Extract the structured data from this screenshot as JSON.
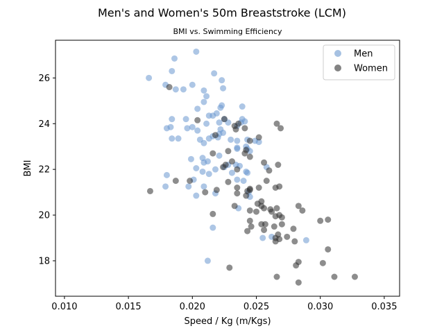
{
  "chart_data": {
    "type": "scatter",
    "title": "Men's and Women's 50m Breaststroke (LCM)",
    "subtitle": "BMI vs. Swimming Efficiency",
    "xlabel": "Speed / Kg (m/Kgs)",
    "ylabel": "BMI",
    "xlim": [
      0.0093,
      0.0362
    ],
    "ylim": [
      16.45,
      27.65
    ],
    "xticks": [
      "0.010",
      "0.015",
      "0.020",
      "0.025",
      "0.030",
      "0.035"
    ],
    "yticks": [
      "18",
      "20",
      "22",
      "24",
      "26"
    ],
    "xtick_values": [
      0.01,
      0.015,
      0.02,
      0.025,
      0.03,
      0.035
    ],
    "ytick_values": [
      18,
      20,
      22,
      24,
      26
    ],
    "grid": false,
    "legend_position": "top-right",
    "series": [
      {
        "name": "Men",
        "color": "#6a97cf",
        "points": [
          [
            0.0166,
            26.0
          ],
          [
            0.0186,
            26.85
          ],
          [
            0.0203,
            27.15
          ],
          [
            0.0184,
            26.3
          ],
          [
            0.0179,
            25.7
          ],
          [
            0.0187,
            25.5
          ],
          [
            0.0193,
            25.5
          ],
          [
            0.02,
            25.7
          ],
          [
            0.0209,
            25.45
          ],
          [
            0.0211,
            25.2
          ],
          [
            0.0217,
            26.2
          ],
          [
            0.0223,
            25.9
          ],
          [
            0.0224,
            25.55
          ],
          [
            0.0209,
            24.95
          ],
          [
            0.0204,
            24.65
          ],
          [
            0.0213,
            24.35
          ],
          [
            0.0219,
            24.45
          ],
          [
            0.0222,
            24.7
          ],
          [
            0.0223,
            24.8
          ],
          [
            0.0239,
            24.75
          ],
          [
            0.0184,
            24.2
          ],
          [
            0.0195,
            24.2
          ],
          [
            0.018,
            23.8
          ],
          [
            0.0183,
            23.85
          ],
          [
            0.0196,
            23.8
          ],
          [
            0.02,
            23.85
          ],
          [
            0.0204,
            23.7
          ],
          [
            0.0211,
            24.0
          ],
          [
            0.0216,
            24.35
          ],
          [
            0.0221,
            24.05
          ],
          [
            0.0225,
            24.2
          ],
          [
            0.0228,
            24.05
          ],
          [
            0.0222,
            23.75
          ],
          [
            0.0221,
            23.55
          ],
          [
            0.0224,
            23.6
          ],
          [
            0.022,
            23.4
          ],
          [
            0.0216,
            23.45
          ],
          [
            0.0213,
            23.35
          ],
          [
            0.0206,
            23.3
          ],
          [
            0.0209,
            23.15
          ],
          [
            0.0184,
            23.35
          ],
          [
            0.0189,
            23.35
          ],
          [
            0.023,
            23.3
          ],
          [
            0.0235,
            23.25
          ],
          [
            0.0235,
            23.9
          ],
          [
            0.0238,
            24.05
          ],
          [
            0.0241,
            24.1
          ],
          [
            0.0239,
            24.2
          ],
          [
            0.0243,
            23.3
          ],
          [
            0.0249,
            23.25
          ],
          [
            0.0252,
            23.2
          ],
          [
            0.0242,
            23.0
          ],
          [
            0.0243,
            22.9
          ],
          [
            0.0245,
            22.8
          ],
          [
            0.0235,
            22.9
          ],
          [
            0.0235,
            22.95
          ],
          [
            0.0221,
            22.6
          ],
          [
            0.0208,
            22.5
          ],
          [
            0.0199,
            22.45
          ],
          [
            0.0212,
            22.35
          ],
          [
            0.0209,
            22.3
          ],
          [
            0.0234,
            22.2
          ],
          [
            0.0237,
            22.15
          ],
          [
            0.0228,
            22.2
          ],
          [
            0.0203,
            22.05
          ],
          [
            0.0208,
            21.9
          ],
          [
            0.0213,
            21.8
          ],
          [
            0.0218,
            22.0
          ],
          [
            0.0225,
            22.1
          ],
          [
            0.0231,
            21.85
          ],
          [
            0.0235,
            21.55
          ],
          [
            0.024,
            21.5
          ],
          [
            0.0242,
            21.9
          ],
          [
            0.0243,
            21.85
          ],
          [
            0.0258,
            22.1
          ],
          [
            0.018,
            21.75
          ],
          [
            0.0179,
            21.25
          ],
          [
            0.0197,
            21.25
          ],
          [
            0.0201,
            21.55
          ],
          [
            0.0209,
            21.25
          ],
          [
            0.0203,
            20.85
          ],
          [
            0.0218,
            20.95
          ],
          [
            0.0236,
            20.3
          ],
          [
            0.0244,
            21.0
          ],
          [
            0.0245,
            20.8
          ],
          [
            0.0216,
            19.45
          ],
          [
            0.0255,
            19.0
          ],
          [
            0.0262,
            19.05
          ],
          [
            0.0289,
            18.9
          ],
          [
            0.0212,
            18.0
          ]
        ]
      },
      {
        "name": "Women",
        "color": "#303030",
        "points": [
          [
            0.0167,
            21.05
          ],
          [
            0.0182,
            25.6
          ],
          [
            0.0204,
            24.15
          ],
          [
            0.0225,
            24.2
          ],
          [
            0.0233,
            23.9
          ],
          [
            0.0234,
            23.75
          ],
          [
            0.0236,
            24.0
          ],
          [
            0.0241,
            23.8
          ],
          [
            0.0266,
            24.0
          ],
          [
            0.0269,
            23.8
          ],
          [
            0.0245,
            23.25
          ],
          [
            0.0252,
            23.4
          ],
          [
            0.0218,
            23.5
          ],
          [
            0.0216,
            22.7
          ],
          [
            0.0228,
            22.8
          ],
          [
            0.0241,
            22.7
          ],
          [
            0.0242,
            22.85
          ],
          [
            0.0245,
            22.55
          ],
          [
            0.0226,
            22.2
          ],
          [
            0.0224,
            22.1
          ],
          [
            0.0231,
            22.35
          ],
          [
            0.0235,
            22.0
          ],
          [
            0.0256,
            22.3
          ],
          [
            0.026,
            21.95
          ],
          [
            0.0267,
            22.2
          ],
          [
            0.0187,
            21.5
          ],
          [
            0.0198,
            21.5
          ],
          [
            0.021,
            21.0
          ],
          [
            0.0219,
            21.1
          ],
          [
            0.0228,
            21.45
          ],
          [
            0.0235,
            21.2
          ],
          [
            0.0243,
            21.05
          ],
          [
            0.0245,
            21.15
          ],
          [
            0.0258,
            21.5
          ],
          [
            0.0252,
            21.2
          ],
          [
            0.0265,
            21.2
          ],
          [
            0.0268,
            21.25
          ],
          [
            0.0235,
            20.95
          ],
          [
            0.0242,
            20.85
          ],
          [
            0.0245,
            21.1
          ],
          [
            0.0233,
            20.4
          ],
          [
            0.0245,
            20.2
          ],
          [
            0.025,
            20.15
          ],
          [
            0.0251,
            20.5
          ],
          [
            0.0254,
            20.6
          ],
          [
            0.0254,
            20.4
          ],
          [
            0.0256,
            20.3
          ],
          [
            0.0261,
            20.25
          ],
          [
            0.0266,
            20.3
          ],
          [
            0.0262,
            20.15
          ],
          [
            0.0268,
            20.0
          ],
          [
            0.0265,
            19.95
          ],
          [
            0.027,
            19.9
          ],
          [
            0.0283,
            20.4
          ],
          [
            0.0286,
            20.2
          ],
          [
            0.0216,
            20.05
          ],
          [
            0.0245,
            19.75
          ],
          [
            0.0246,
            19.5
          ],
          [
            0.0254,
            19.6
          ],
          [
            0.0257,
            19.6
          ],
          [
            0.0256,
            19.35
          ],
          [
            0.0264,
            19.5
          ],
          [
            0.027,
            19.6
          ],
          [
            0.0279,
            19.4
          ],
          [
            0.03,
            19.75
          ],
          [
            0.0306,
            19.8
          ],
          [
            0.0243,
            19.3
          ],
          [
            0.0265,
            19.0
          ],
          [
            0.0268,
            18.95
          ],
          [
            0.0267,
            19.15
          ],
          [
            0.0265,
            18.85
          ],
          [
            0.028,
            18.85
          ],
          [
            0.0274,
            19.05
          ],
          [
            0.0306,
            18.5
          ],
          [
            0.0281,
            17.8
          ],
          [
            0.0283,
            17.95
          ],
          [
            0.0302,
            17.9
          ],
          [
            0.0229,
            17.7
          ],
          [
            0.0266,
            17.3
          ],
          [
            0.0283,
            17.05
          ],
          [
            0.0311,
            17.3
          ],
          [
            0.0327,
            17.3
          ]
        ]
      }
    ]
  }
}
